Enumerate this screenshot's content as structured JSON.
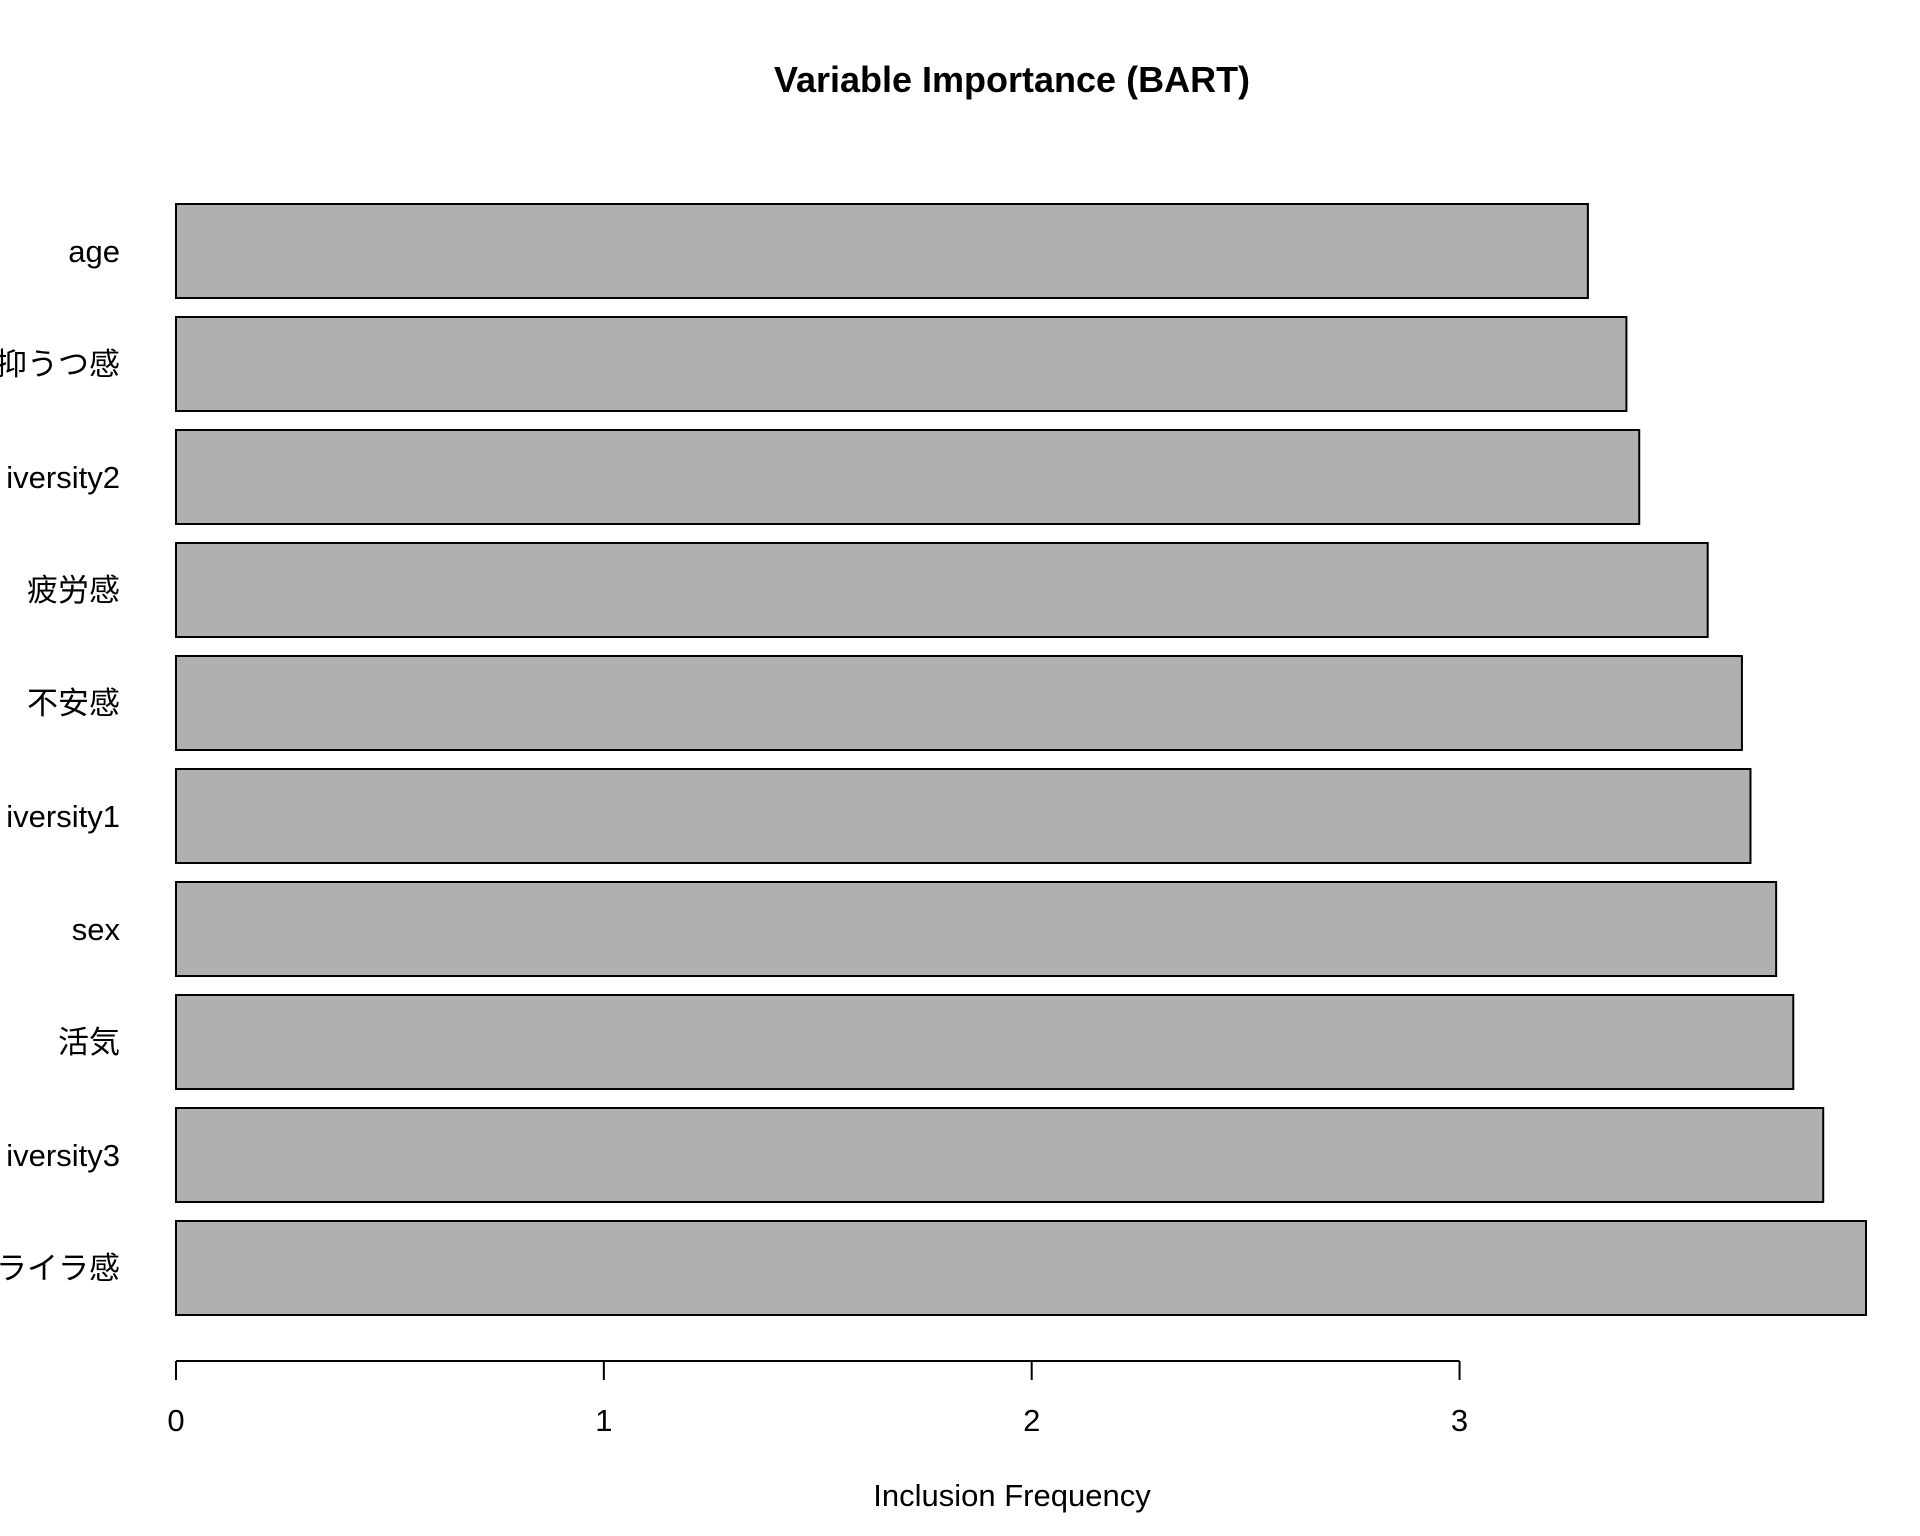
{
  "chart_data": {
    "type": "bar",
    "orientation": "horizontal",
    "title": "Variable Importance (BART)",
    "xlabel": "Inclusion Frequency",
    "ylabel": "",
    "categories": [
      "age",
      "抑うつ感",
      "iversity2",
      "疲労感",
      "不安感",
      "iversity1",
      "sex",
      "活気",
      "iversity3",
      "ライラ感"
    ],
    "values": [
      3.3,
      3.39,
      3.42,
      3.58,
      3.66,
      3.68,
      3.74,
      3.78,
      3.85,
      3.95
    ],
    "xlim": [
      0,
      3.95
    ],
    "xticks": [
      "0",
      "1",
      "2",
      "3"
    ],
    "grid": false,
    "bar_color": "#b0b0b0",
    "edge_color": "#000000"
  }
}
